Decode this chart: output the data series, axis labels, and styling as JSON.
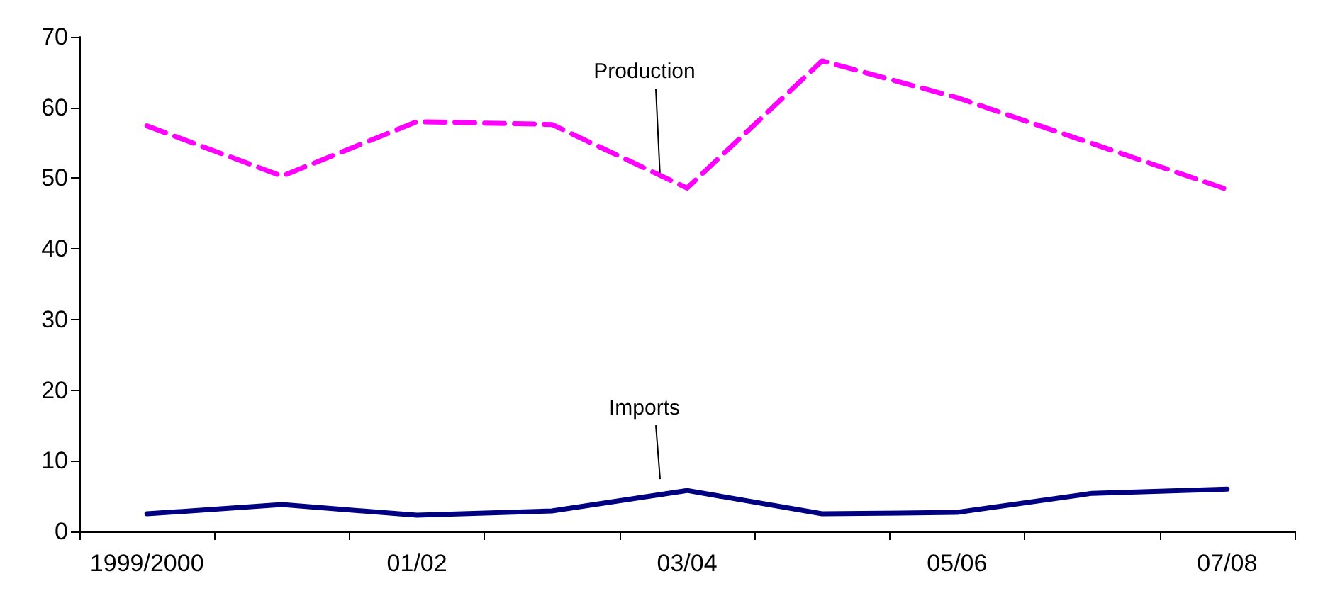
{
  "chart_data": {
    "type": "line",
    "categories": [
      "1999/2000",
      null,
      "01/02",
      null,
      "03/04",
      null,
      "05/06",
      null,
      "07/08"
    ],
    "series": [
      {
        "name": "Production",
        "color": "#ff00ff",
        "line_style": "dashed",
        "values": [
          57.4,
          50.3,
          58,
          57.6,
          48.6,
          66.6,
          61.4,
          54.9,
          48.4
        ]
      },
      {
        "name": "Imports",
        "color": "#000080",
        "line_style": "solid",
        "values": [
          2.5,
          3.8,
          2.3,
          2.9,
          5.8,
          2.5,
          2.7,
          5.4,
          6.0
        ]
      }
    ],
    "ylim": [
      0,
      70
    ],
    "yticks": [
      0,
      10,
      20,
      30,
      40,
      50,
      60,
      70
    ],
    "grid": false,
    "marker": "none"
  }
}
